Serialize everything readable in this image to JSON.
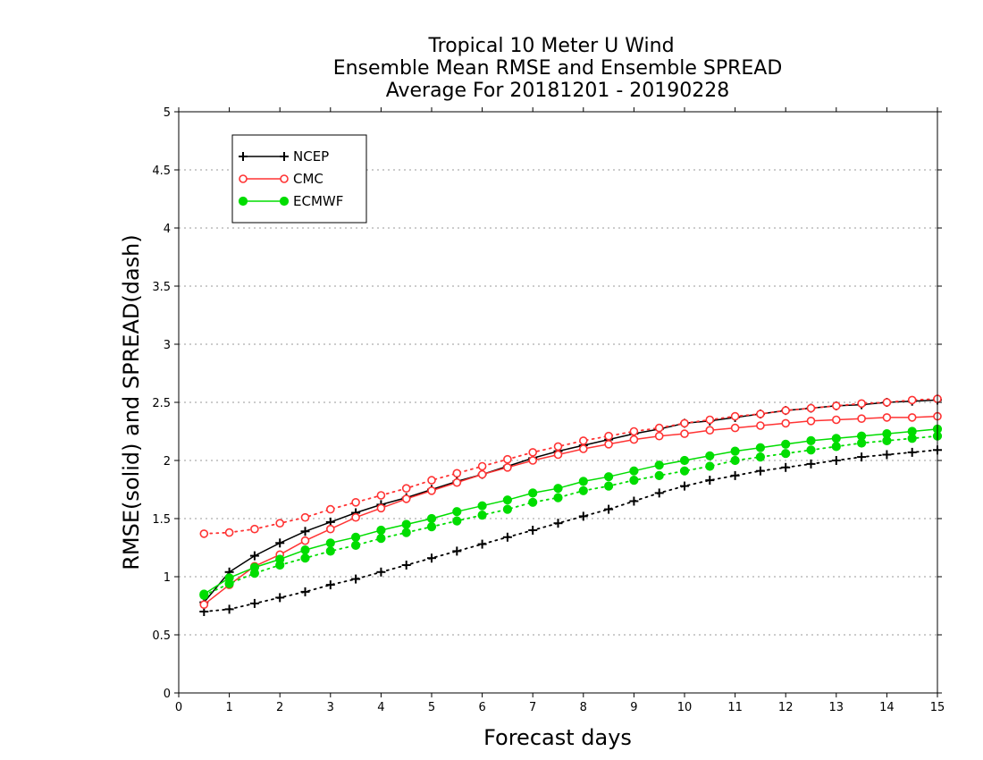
{
  "chart_data": {
    "type": "line",
    "title_lines": [
      "Tropical 10 Meter U Wind",
      "Ensemble Mean RMSE and Ensemble SPREAD",
      "Average For 20181201 - 20190228"
    ],
    "xlabel": "Forecast days",
    "ylabel": "RMSE(solid) and SPREAD(dash)",
    "xlim": [
      0,
      15
    ],
    "ylim": [
      0,
      5
    ],
    "xticks": [
      0,
      1,
      2,
      3,
      4,
      5,
      6,
      7,
      8,
      9,
      10,
      11,
      12,
      13,
      14,
      15
    ],
    "yticks": [
      0,
      0.5,
      1,
      1.5,
      2,
      2.5,
      3,
      3.5,
      4,
      4.5,
      5
    ],
    "grid": "horizontal dotted",
    "legend_position": "top-left",
    "x": [
      0.5,
      1,
      1.5,
      2,
      2.5,
      3,
      3.5,
      4,
      4.5,
      5,
      5.5,
      6,
      6.5,
      7,
      7.5,
      8,
      8.5,
      9,
      9.5,
      10,
      10.5,
      11,
      11.5,
      12,
      12.5,
      13,
      13.5,
      14,
      14.5,
      15
    ],
    "series": [
      {
        "name": "NCEP",
        "color": "#000000",
        "marker": "plus",
        "rmse": [
          0.78,
          1.04,
          1.18,
          1.29,
          1.39,
          1.47,
          1.55,
          1.62,
          1.68,
          1.75,
          1.82,
          1.88,
          1.95,
          2.02,
          2.08,
          2.13,
          2.18,
          2.23,
          2.27,
          2.32,
          2.34,
          2.37,
          2.4,
          2.43,
          2.45,
          2.47,
          2.48,
          2.5,
          2.51,
          2.52
        ],
        "spread": [
          0.7,
          0.72,
          0.77,
          0.82,
          0.87,
          0.93,
          0.98,
          1.04,
          1.1,
          1.16,
          1.22,
          1.28,
          1.34,
          1.4,
          1.46,
          1.52,
          1.58,
          1.65,
          1.72,
          1.78,
          1.83,
          1.87,
          1.91,
          1.94,
          1.97,
          2.0,
          2.03,
          2.05,
          2.07,
          2.09
        ]
      },
      {
        "name": "CMC",
        "color": "#ff3333",
        "marker": "open-circle",
        "rmse": [
          0.76,
          0.93,
          1.09,
          1.19,
          1.31,
          1.41,
          1.51,
          1.59,
          1.67,
          1.74,
          1.81,
          1.88,
          1.94,
          2.0,
          2.05,
          2.1,
          2.14,
          2.18,
          2.21,
          2.23,
          2.26,
          2.28,
          2.3,
          2.32,
          2.34,
          2.35,
          2.36,
          2.37,
          2.37,
          2.38
        ],
        "spread": [
          1.37,
          1.38,
          1.41,
          1.46,
          1.51,
          1.58,
          1.64,
          1.7,
          1.76,
          1.83,
          1.89,
          1.95,
          2.01,
          2.07,
          2.12,
          2.17,
          2.21,
          2.25,
          2.28,
          2.32,
          2.35,
          2.38,
          2.4,
          2.43,
          2.45,
          2.47,
          2.49,
          2.5,
          2.52,
          2.53
        ]
      },
      {
        "name": "ECMWF",
        "color": "#00dd00",
        "marker": "filled-circle",
        "rmse": [
          0.85,
          0.99,
          1.08,
          1.15,
          1.23,
          1.29,
          1.34,
          1.4,
          1.45,
          1.5,
          1.56,
          1.61,
          1.66,
          1.72,
          1.76,
          1.82,
          1.86,
          1.91,
          1.96,
          2.0,
          2.04,
          2.08,
          2.11,
          2.14,
          2.17,
          2.19,
          2.21,
          2.23,
          2.25,
          2.27
        ],
        "spread": [
          0.84,
          0.94,
          1.03,
          1.1,
          1.16,
          1.22,
          1.27,
          1.33,
          1.38,
          1.43,
          1.48,
          1.53,
          1.58,
          1.64,
          1.68,
          1.74,
          1.78,
          1.83,
          1.87,
          1.91,
          1.95,
          2.0,
          2.03,
          2.06,
          2.09,
          2.12,
          2.15,
          2.17,
          2.19,
          2.21
        ]
      }
    ]
  }
}
